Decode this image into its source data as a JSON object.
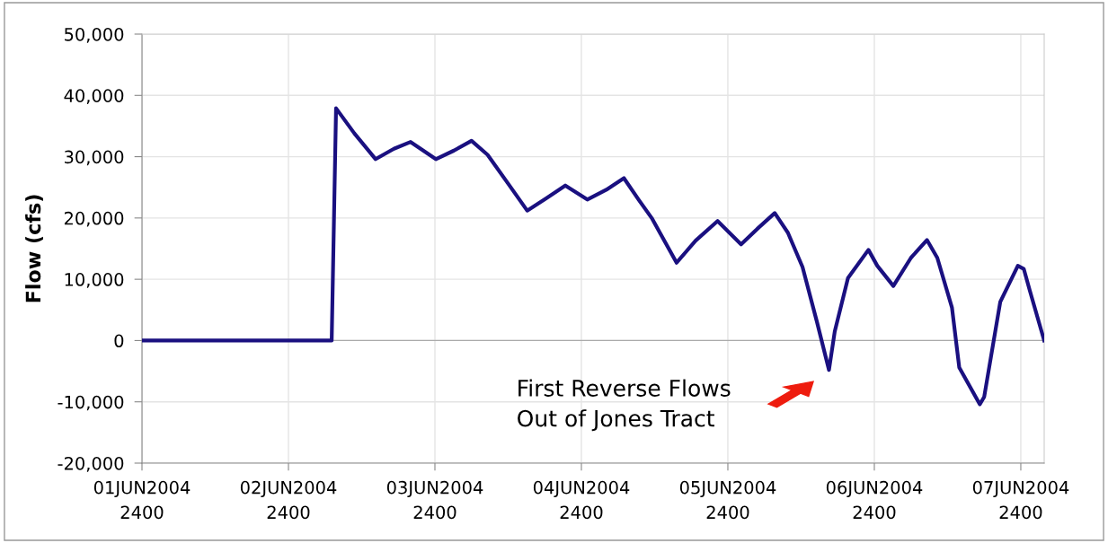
{
  "chart_data": {
    "type": "line",
    "ylabel": "Flow (cfs)",
    "x": [
      "2004-06-01T00:00",
      "2004-06-02T07:05",
      "2004-06-02T07:48",
      "2004-06-02T10:48",
      "2004-06-02T14:17",
      "2004-06-02T17:17",
      "2004-06-02T20:01",
      "2004-06-03T00:09",
      "2004-06-03T03:07",
      "2004-06-03T06:00",
      "2004-06-03T08:38",
      "2004-06-03T12:00",
      "2004-06-03T15:07",
      "2004-06-03T18:14",
      "2004-06-03T21:22",
      "2004-06-04T00:58",
      "2004-06-04T04:05",
      "2004-06-04T06:58",
      "2004-06-04T09:22",
      "2004-06-04T11:31",
      "2004-06-04T15:36",
      "2004-06-04T18:43",
      "2004-06-04T22:19",
      "2004-06-05T02:10",
      "2004-06-05T04:48",
      "2004-06-05T07:41",
      "2004-06-05T09:50",
      "2004-06-05T12:14",
      "2004-06-05T14:38",
      "2004-06-05T16:34",
      "2004-06-05T17:31",
      "2004-06-05T19:41",
      "2004-06-05T23:02",
      "2004-06-06T00:29",
      "2004-06-06T03:07",
      "2004-06-06T06:00",
      "2004-06-06T08:38",
      "2004-06-06T10:19",
      "2004-06-06T12:43",
      "2004-06-06T13:55",
      "2004-06-06T17:17",
      "2004-06-06T18:00",
      "2004-06-06T20:38",
      "2004-06-06T23:31",
      "2004-06-07T00:29",
      "2004-06-07T01:26",
      "2004-06-07T03:50"
    ],
    "series": [
      {
        "color": "#1a1080",
        "values": [
          0,
          0,
          37900,
          33800,
          29600,
          31300,
          32400,
          29600,
          31000,
          32600,
          30300,
          25600,
          21200,
          23200,
          25300,
          23000,
          24600,
          26500,
          23000,
          20000,
          12700,
          16300,
          19500,
          15700,
          18200,
          20800,
          17600,
          12000,
          2900,
          -4800,
          1500,
          10200,
          14800,
          12200,
          8900,
          13500,
          16400,
          13500,
          5400,
          -4400,
          -10400,
          -9200,
          6300,
          12200,
          11700,
          8300,
          0
        ]
      }
    ],
    "xlim": [
      "2004-06-01T00:00",
      "2004-06-07T03:50"
    ],
    "xticks": [
      {
        "value": "2004-06-01",
        "label": "01JUN2004\n2400"
      },
      {
        "value": "2004-06-02",
        "label": "02JUN2004\n2400"
      },
      {
        "value": "2004-06-03",
        "label": "03JUN2004\n2400"
      },
      {
        "value": "2004-06-04",
        "label": "04JUN2004\n2400"
      },
      {
        "value": "2004-06-05",
        "label": "05JUN2004\n2400"
      },
      {
        "value": "2004-06-06",
        "label": "06JUN2004\n2400"
      },
      {
        "value": "2004-06-07",
        "label": "07JUN2004\n2400"
      }
    ],
    "ylim": [
      -20000,
      50000
    ],
    "yticks": [
      {
        "value": -20000,
        "label": "-20,000"
      },
      {
        "value": -10000,
        "label": "-10,000"
      },
      {
        "value": 0,
        "label": "0"
      },
      {
        "value": 10000,
        "label": "10,000"
      },
      {
        "value": 20000,
        "label": "20,000"
      },
      {
        "value": 30000,
        "label": "30,000"
      },
      {
        "value": 40000,
        "label": "40,000"
      },
      {
        "value": 50000,
        "label": "50,000"
      }
    ],
    "grid": true,
    "marker": "none",
    "line_style": "solid",
    "annotations": [
      "First Reverse Flows\nOut of Jones Tract"
    ]
  }
}
